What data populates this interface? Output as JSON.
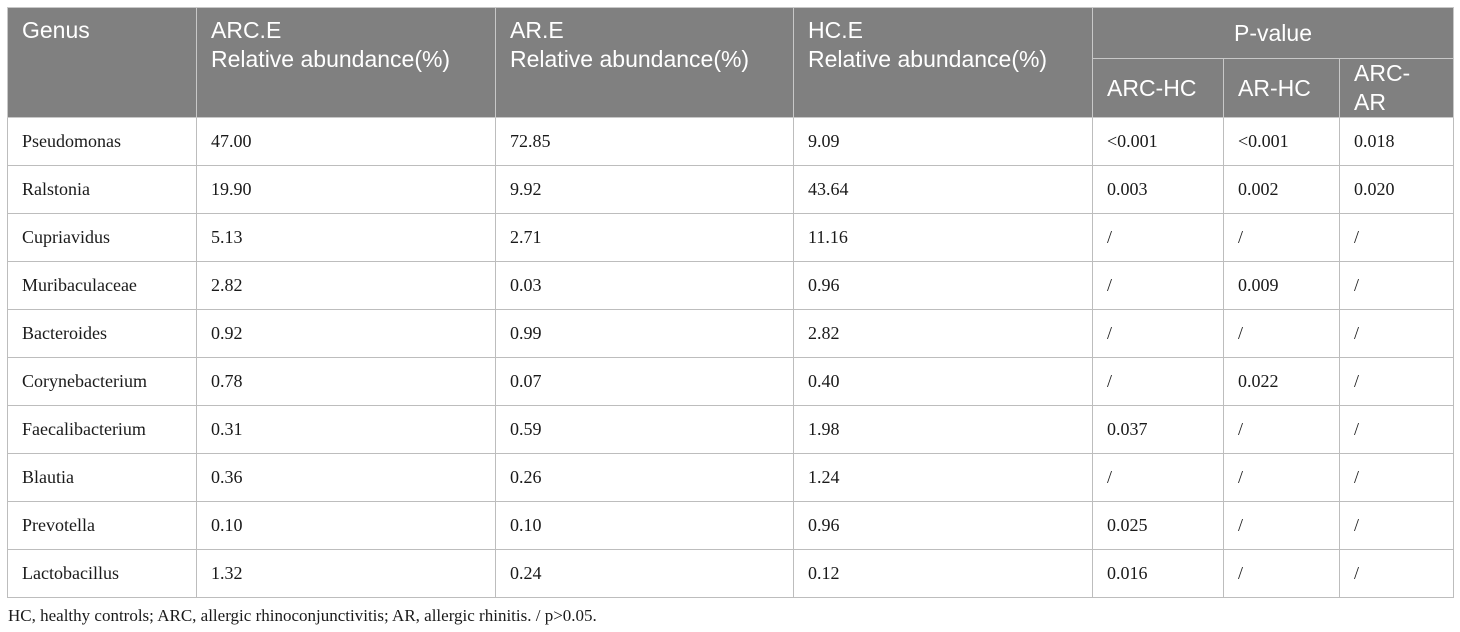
{
  "table": {
    "headers": {
      "genus": "Genus",
      "arc": {
        "line1": "ARC.E",
        "line2": "Relative abundance(%)"
      },
      "ar": {
        "line1": "AR.E",
        "line2": "Relative abundance(%)"
      },
      "hc": {
        "line1": "HC.E",
        "line2": "Relative abundance(%)"
      },
      "pvalue": "P-value",
      "pvalue_sub": [
        "ARC-HC",
        "AR-HC",
        "ARC-AR"
      ]
    },
    "rows": [
      [
        "Pseudomonas",
        "47.00",
        "72.85",
        "9.09",
        "<0.001",
        "<0.001",
        "0.018"
      ],
      [
        "Ralstonia",
        "19.90",
        "9.92",
        "43.64",
        "0.003",
        "0.002",
        "0.020"
      ],
      [
        "Cupriavidus",
        "5.13",
        "2.71",
        "11.16",
        "/",
        "/",
        "/"
      ],
      [
        "Muribaculaceae",
        "2.82",
        "0.03",
        "0.96",
        "/",
        "0.009",
        "/"
      ],
      [
        "Bacteroides",
        "0.92",
        "0.99",
        "2.82",
        "/",
        "/",
        "/"
      ],
      [
        "Corynebacterium",
        "0.78",
        "0.07",
        "0.40",
        "/",
        "0.022",
        "/"
      ],
      [
        "Faecalibacterium",
        "0.31",
        "0.59",
        "1.98",
        "0.037",
        "/",
        "/"
      ],
      [
        "Blautia",
        "0.36",
        "0.26",
        "1.24",
        "/",
        "/",
        "/"
      ],
      [
        "Prevotella",
        "0.10",
        "0.10",
        "0.96",
        "0.025",
        "/",
        "/"
      ],
      [
        "Lactobacillus",
        "1.32",
        "0.24",
        "0.12",
        "0.016",
        "/",
        "/"
      ]
    ]
  },
  "footnote": "HC, healthy controls; ARC, allergic rhinoconjunctivitis; AR, allergic rhinitis. / p>0.05."
}
